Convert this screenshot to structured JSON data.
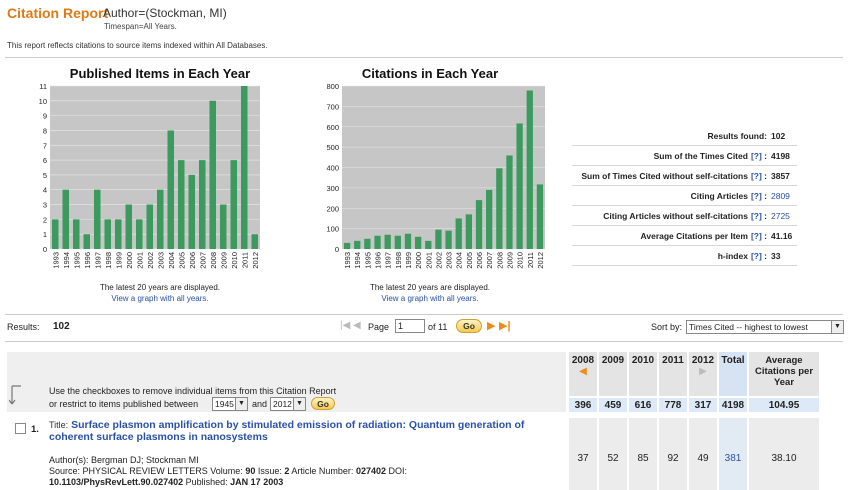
{
  "header": {
    "title": "Citation Report",
    "query": "Author=(Stockman, MI)",
    "timespan": "Timespan=All Years.",
    "note": "This report reflects citations to source items indexed within All Databases."
  },
  "charts": {
    "years_note": "The latest 20 years are displayed.",
    "view_all_link": "View a graph with all years."
  },
  "chart_data": [
    {
      "type": "bar",
      "title": "Published Items in Each Year",
      "categories": [
        "1993",
        "1994",
        "1995",
        "1996",
        "1997",
        "1998",
        "1999",
        "2000",
        "2001",
        "2002",
        "2003",
        "2004",
        "2005",
        "2006",
        "2007",
        "2008",
        "2009",
        "2010",
        "2011",
        "2012"
      ],
      "values": [
        2,
        4,
        2,
        1,
        4,
        2,
        2,
        3,
        2,
        3,
        4,
        8,
        6,
        5,
        6,
        10,
        3,
        6,
        11,
        1
      ],
      "ylim": [
        0,
        11
      ],
      "yticks": [
        0,
        1,
        2,
        3,
        4,
        5,
        6,
        7,
        8,
        9,
        10,
        11
      ],
      "grid": true,
      "bar_color": "#3d9a5e",
      "bg_color": "#c6c6c6"
    },
    {
      "type": "bar",
      "title": "Citations in Each Year",
      "categories": [
        "1993",
        "1994",
        "1995",
        "1996",
        "1997",
        "1998",
        "1999",
        "2000",
        "2001",
        "2002",
        "2003",
        "2004",
        "2005",
        "2006",
        "2007",
        "2008",
        "2009",
        "2010",
        "2011",
        "2012"
      ],
      "values": [
        30,
        40,
        50,
        65,
        70,
        65,
        75,
        60,
        40,
        95,
        90,
        150,
        170,
        240,
        290,
        396,
        459,
        616,
        778,
        317
      ],
      "ylim": [
        0,
        800
      ],
      "yticks": [
        0,
        100,
        200,
        300,
        400,
        500,
        600,
        700,
        800
      ],
      "grid": true,
      "bar_color": "#3d9a5e",
      "bg_color": "#c6c6c6"
    }
  ],
  "stats": [
    {
      "label": "Results found:",
      "value": "102",
      "link": false,
      "help": false
    },
    {
      "label": "Sum of the Times Cited",
      "value": "4198",
      "link": false,
      "help": true
    },
    {
      "label": "Sum of Times Cited without self-citations",
      "value": "3857",
      "link": false,
      "help": true
    },
    {
      "label": "Citing Articles",
      "value": "2809",
      "link": true,
      "help": true
    },
    {
      "label": "Citing Articles without self-citations",
      "value": "2725",
      "link": true,
      "help": true
    },
    {
      "label": "Average Citations per Item",
      "value": "41.16",
      "link": false,
      "help": true
    },
    {
      "label": "h-index",
      "value": "33",
      "link": false,
      "help": true
    }
  ],
  "help_text": "[?]",
  "results_bar": {
    "label": "Results:",
    "count": "102",
    "page_label": "Page",
    "page_value": "1",
    "of_label": "of 11",
    "go": "Go",
    "sort_label": "Sort by:",
    "sort_value": "Times Cited -- highest to lowest"
  },
  "filter": {
    "line1": "Use the checkboxes to remove individual items from this Citation Report",
    "line2": "or restrict to items published between",
    "from_year": "1945",
    "and": "and",
    "to_year": "2012",
    "go": "Go"
  },
  "table": {
    "years": [
      "2008",
      "2009",
      "2010",
      "2011",
      "2012"
    ],
    "total_label": "Total",
    "avg_label": "Average Citations per Year",
    "totals": [
      "396",
      "459",
      "616",
      "778",
      "317"
    ],
    "total_sum": "4198",
    "avg_total": "104.95"
  },
  "record": {
    "number": "1.",
    "title_label": "Title:",
    "title": "Surface plasmon amplification by stimulated emission of radiation: Quantum generation of coherent surface plasmons in nanosystems",
    "authors_label": "Author(s):",
    "authors": "Bergman DJ; Stockman MI",
    "source_label": "Source:",
    "source": "PHYSICAL REVIEW LETTERS",
    "volume_label": "Volume:",
    "volume": "90",
    "issue_label": "Issue:",
    "issue": "2",
    "article_label": "Article Number:",
    "article": "027402",
    "doi_label": "DOI:",
    "doi": "10.1103/PhysRevLett.90.027402",
    "published_label": "Published:",
    "published": "JAN 17 2003",
    "cites": [
      "37",
      "52",
      "85",
      "92",
      "49"
    ],
    "total": "381",
    "avg": "38.10"
  }
}
